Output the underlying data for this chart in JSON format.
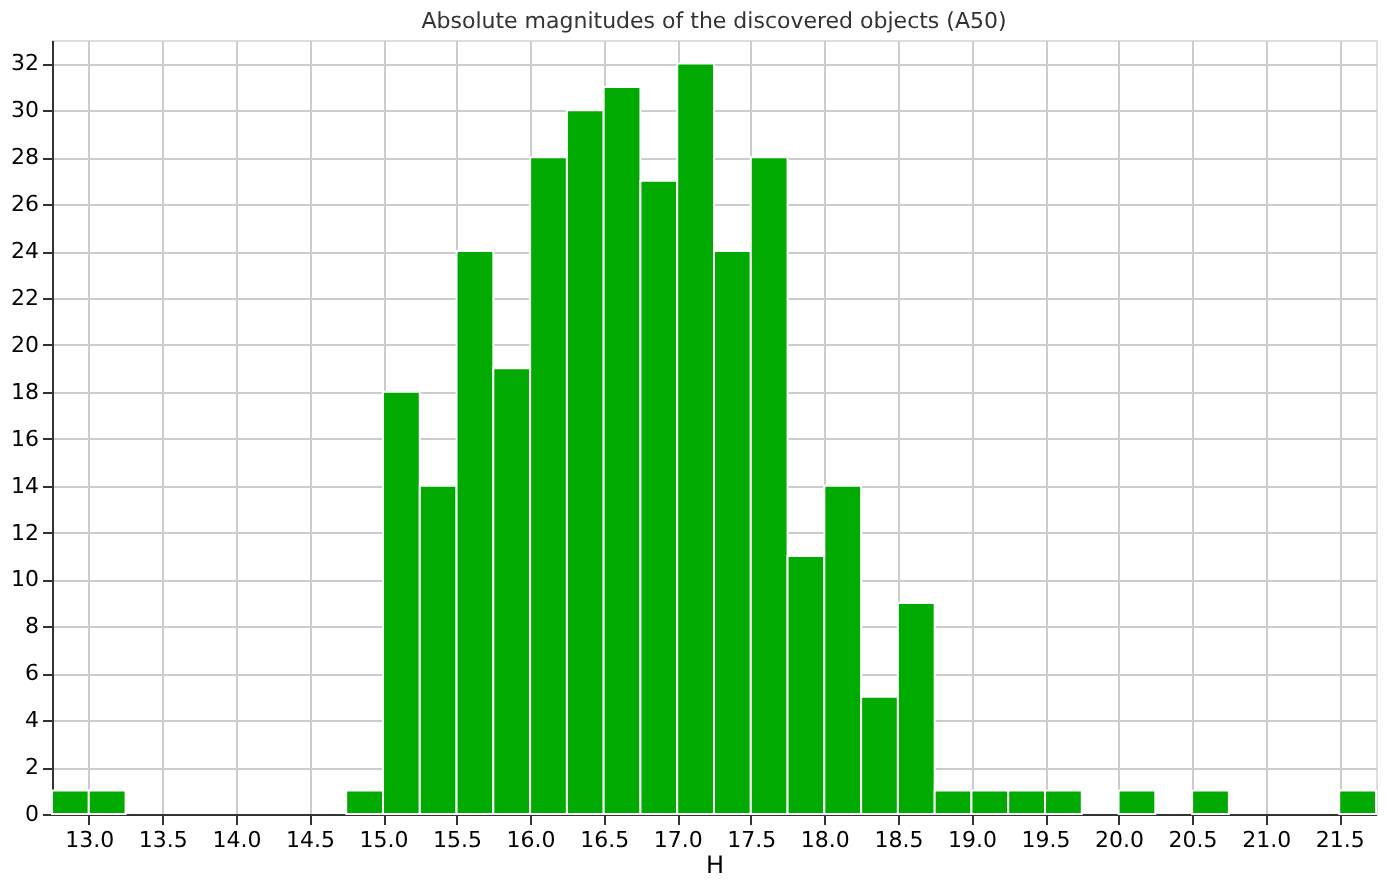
{
  "chart_data": {
    "type": "histogram",
    "title": "Absolute magnitudes of the discovered objects (A50)",
    "xlabel": "H",
    "color": "#00aa00",
    "bins": [
      12.75,
      13.0,
      13.25,
      13.5,
      13.75,
      14.0,
      14.25,
      14.5,
      14.75,
      15.0,
      15.25,
      15.5,
      15.75,
      16.0,
      16.25,
      16.5,
      16.75,
      17.0,
      17.25,
      17.5,
      17.75,
      18.0,
      18.25,
      18.5,
      18.75,
      19.0,
      19.25,
      19.5,
      19.75,
      20.0,
      20.25,
      20.5,
      20.75,
      21.0,
      21.25,
      21.5,
      21.75
    ],
    "values": [
      1,
      1,
      0,
      0,
      0,
      0,
      0,
      0,
      1,
      18,
      14,
      24,
      19,
      28,
      30,
      31,
      27,
      32,
      24,
      28,
      11,
      14,
      5,
      9,
      1,
      1,
      1,
      1,
      0,
      1,
      0,
      1,
      0,
      0,
      0,
      1
    ],
    "xlim": [
      12.75,
      21.75
    ],
    "xticks": [
      {
        "value": 13,
        "label": "13.0"
      },
      {
        "value": 13.5,
        "label": "13.5"
      },
      {
        "value": 14,
        "label": "14.0"
      },
      {
        "value": 14.5,
        "label": "14.5"
      },
      {
        "value": 15,
        "label": "15.0"
      },
      {
        "value": 15.5,
        "label": "15.5"
      },
      {
        "value": 16,
        "label": "16.0"
      },
      {
        "value": 16.5,
        "label": "16.5"
      },
      {
        "value": 17,
        "label": "17.0"
      },
      {
        "value": 17.5,
        "label": "17.5"
      },
      {
        "value": 18,
        "label": "18.0"
      },
      {
        "value": 18.5,
        "label": "18.5"
      },
      {
        "value": 19,
        "label": "19.0"
      },
      {
        "value": 19.5,
        "label": "19.5"
      },
      {
        "value": 20,
        "label": "20.0"
      },
      {
        "value": 20.5,
        "label": "20.5"
      },
      {
        "value": 21,
        "label": "21.0"
      },
      {
        "value": 21.5,
        "label": "21.5"
      }
    ],
    "ylim": [
      0,
      33
    ],
    "yticks": [
      0,
      2,
      4,
      6,
      8,
      10,
      12,
      14,
      16,
      18,
      20,
      22,
      24,
      26,
      28,
      30,
      32
    ],
    "grid": true
  }
}
